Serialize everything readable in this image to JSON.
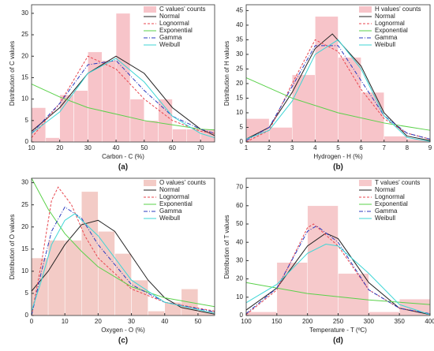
{
  "chart_data": [
    {
      "type": "histogram",
      "caption": "(a)",
      "xlabel": "Carbon - C (%)",
      "ylabel": "Distribution of C values",
      "xlim": [
        10,
        75
      ],
      "xticks": [
        10,
        20,
        30,
        40,
        50,
        60,
        70
      ],
      "ylim": [
        0,
        32
      ],
      "yticks": [
        0,
        5,
        10,
        15,
        20,
        25,
        30
      ],
      "bar_label": "C values' counts",
      "bar_color": "#f7c4c9",
      "bins": [
        10,
        15,
        20,
        25,
        30,
        35,
        40,
        45,
        50,
        55,
        60,
        65,
        70,
        75
      ],
      "counts": [
        8,
        1,
        11,
        12,
        21,
        19,
        30,
        10,
        5,
        10,
        3,
        3,
        3
      ],
      "series": [
        {
          "name": "Normal",
          "color": "#222222",
          "dash": "none",
          "x": [
            10,
            20,
            30,
            40,
            50,
            60,
            70,
            75
          ],
          "values": [
            2.5,
            8,
            16,
            20,
            16,
            8,
            3,
            1.5
          ]
        },
        {
          "name": "Lognormal",
          "color": "#e8474f",
          "dash": "3 2",
          "x": [
            10,
            20,
            30,
            40,
            50,
            60,
            70,
            75
          ],
          "values": [
            1,
            9,
            20,
            17,
            10,
            5,
            2.5,
            2
          ]
        },
        {
          "name": "Exponential",
          "color": "#5ad14a",
          "dash": "none",
          "x": [
            10,
            20,
            30,
            40,
            50,
            60,
            70,
            75
          ],
          "values": [
            13.5,
            10.5,
            8,
            6.5,
            5,
            4,
            3,
            2.8
          ]
        },
        {
          "name": "Gamma",
          "color": "#2b3bbf",
          "dash": "5 2 1 2",
          "x": [
            10,
            20,
            30,
            40,
            50,
            60,
            70,
            75
          ],
          "values": [
            2,
            9,
            18,
            19,
            12,
            6,
            3,
            2
          ]
        },
        {
          "name": "Weibull",
          "color": "#3fd6d6",
          "dash": "none",
          "x": [
            10,
            20,
            30,
            40,
            50,
            60,
            70,
            75
          ],
          "values": [
            2,
            7,
            16,
            19.5,
            14,
            6,
            2,
            1
          ]
        }
      ]
    },
    {
      "type": "histogram",
      "caption": "(b)",
      "xlabel": "Hydrogen - H (%)",
      "ylabel": "Distribution of H values",
      "xlim": [
        1,
        9
      ],
      "xticks": [
        1,
        2,
        3,
        4,
        5,
        6,
        7,
        8,
        9
      ],
      "ylim": [
        0,
        47
      ],
      "yticks": [
        0,
        5,
        10,
        15,
        20,
        25,
        30,
        35,
        40,
        45
      ],
      "bar_label": "H values' counts",
      "bar_color": "#f7c4c9",
      "bins": [
        1,
        2,
        3,
        4,
        5,
        6,
        7,
        8,
        9
      ],
      "counts": [
        8,
        5,
        23,
        43,
        29,
        17,
        2,
        1
      ],
      "series": [
        {
          "name": "Normal",
          "color": "#222222",
          "dash": "none",
          "x": [
            1,
            2,
            3,
            4,
            4.75,
            6,
            7,
            8,
            9
          ],
          "values": [
            1,
            5,
            17,
            32,
            37,
            26,
            10,
            2,
            0.5
          ]
        },
        {
          "name": "Lognormal",
          "color": "#e8474f",
          "dash": "3 2",
          "x": [
            1,
            2,
            3,
            4,
            5,
            6,
            7,
            8,
            9
          ],
          "values": [
            0,
            4,
            20,
            35,
            31,
            18,
            8,
            3,
            1
          ]
        },
        {
          "name": "Exponential",
          "color": "#5ad14a",
          "dash": "none",
          "x": [
            1,
            3,
            5,
            7,
            9
          ],
          "values": [
            22,
            15,
            10,
            6.5,
            4
          ]
        },
        {
          "name": "Gamma",
          "color": "#2b3bbf",
          "dash": "5 2 1 2",
          "x": [
            1,
            2,
            3,
            4,
            5,
            6,
            7,
            8,
            9
          ],
          "values": [
            0.5,
            5,
            19,
            33,
            33,
            21,
            9,
            3,
            1
          ]
        },
        {
          "name": "Weibull",
          "color": "#3fd6d6",
          "dash": "none",
          "x": [
            1,
            2,
            3,
            4,
            5,
            6,
            7,
            8,
            9
          ],
          "values": [
            1,
            4,
            14,
            30,
            35,
            25,
            9,
            1.5,
            0.2
          ]
        }
      ]
    },
    {
      "type": "histogram",
      "caption": "(c)",
      "xlabel": "Oxygen - O (%)",
      "ylabel": "Distribution of O values",
      "xlim": [
        0,
        55
      ],
      "xticks": [
        0,
        10,
        20,
        30,
        40,
        50
      ],
      "ylim": [
        0,
        31
      ],
      "yticks": [
        0,
        5,
        10,
        15,
        20,
        25,
        30
      ],
      "bar_label": "O values' counts",
      "bar_color": "#f3cbc6",
      "bins": [
        0,
        5,
        10,
        15,
        20,
        25,
        30,
        35,
        40,
        45,
        50,
        55
      ],
      "counts": [
        13,
        17,
        17,
        28,
        19,
        14,
        8,
        1,
        3,
        6,
        1
      ],
      "series": [
        {
          "name": "Normal",
          "color": "#222222",
          "dash": "none",
          "x": [
            0,
            5,
            10,
            15,
            20,
            25,
            30,
            35,
            40,
            45,
            55
          ],
          "values": [
            5.5,
            10,
            16,
            20.5,
            21.5,
            19,
            13.5,
            8,
            4,
            1.8,
            0.3
          ]
        },
        {
          "name": "Lognormal",
          "color": "#e8474f",
          "dash": "3 2",
          "x": [
            0,
            3,
            6,
            8,
            12,
            16,
            20,
            30,
            40,
            55
          ],
          "values": [
            0,
            12,
            26,
            29,
            25,
            18,
            13,
            6,
            3,
            1
          ]
        },
        {
          "name": "Exponential",
          "color": "#5ad14a",
          "dash": "none",
          "x": [
            0,
            5,
            10,
            15,
            20,
            30,
            40,
            55
          ],
          "values": [
            31,
            24,
            18.5,
            14.5,
            11,
            6.5,
            4,
            2
          ]
        },
        {
          "name": "Gamma",
          "color": "#2b3bbf",
          "dash": "5 2 1 2",
          "x": [
            0,
            3,
            6,
            10,
            15,
            20,
            30,
            40,
            55
          ],
          "values": [
            0,
            10,
            19,
            24.5,
            22,
            16,
            7,
            3,
            0.8
          ]
        },
        {
          "name": "Weibull",
          "color": "#3fd6d6",
          "dash": "none",
          "x": [
            0,
            3,
            6,
            10,
            13,
            20,
            30,
            40,
            55
          ],
          "values": [
            1,
            8,
            16,
            21.5,
            23,
            18,
            8,
            3,
            0.5
          ]
        }
      ]
    },
    {
      "type": "histogram",
      "caption": "(d)",
      "xlabel": "Temperature - T (ºC)",
      "ylabel": "Distribution of T values",
      "xlim": [
        100,
        400
      ],
      "xticks": [
        100,
        150,
        200,
        250,
        300,
        350,
        400
      ],
      "ylim": [
        0,
        75
      ],
      "yticks": [
        0,
        10,
        20,
        30,
        40,
        50,
        60,
        70
      ],
      "bar_label": "T values' counts",
      "bar_color": "#f6c9cb",
      "bins": [
        100,
        150,
        200,
        250,
        300,
        350,
        400
      ],
      "counts": [
        2,
        29,
        60,
        23,
        2,
        9
      ],
      "series": [
        {
          "name": "Normal",
          "color": "#222222",
          "dash": "none",
          "x": [
            100,
            150,
            200,
            230,
            250,
            300,
            350,
            400
          ],
          "values": [
            3,
            15,
            38,
            45,
            42,
            18,
            4,
            0.5
          ]
        },
        {
          "name": "Lognormal",
          "color": "#e8474f",
          "dash": "3 2",
          "x": [
            100,
            150,
            200,
            210,
            250,
            300,
            350,
            400
          ],
          "values": [
            0.5,
            14,
            48,
            50,
            38,
            14,
            4,
            1
          ]
        },
        {
          "name": "Exponential",
          "color": "#5ad14a",
          "dash": "none",
          "x": [
            100,
            200,
            300,
            400
          ],
          "values": [
            18,
            12,
            8.5,
            6
          ]
        },
        {
          "name": "Gamma",
          "color": "#2b3bbf",
          "dash": "5 2 1 2",
          "x": [
            100,
            150,
            200,
            215,
            250,
            300,
            350,
            400
          ],
          "values": [
            1,
            15,
            46,
            49,
            40,
            14,
            4,
            1
          ]
        },
        {
          "name": "Weibull",
          "color": "#3fd6d6",
          "dash": "none",
          "x": [
            100,
            150,
            200,
            230,
            250,
            300,
            350,
            400
          ],
          "values": [
            7,
            17,
            34,
            39,
            38,
            23,
            6,
            0.5
          ]
        }
      ]
    }
  ]
}
